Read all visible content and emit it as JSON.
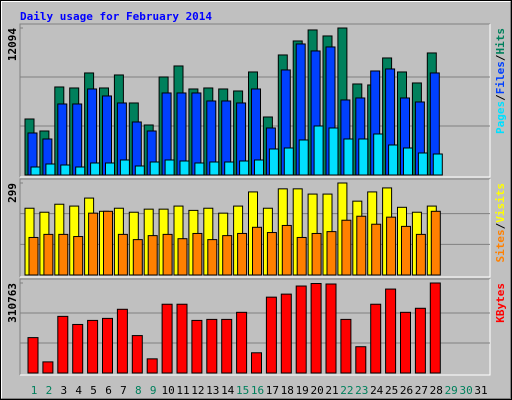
{
  "chart_data": [
    {
      "type": "bar",
      "title": "Daily usage for February 2014",
      "categories": [
        "1",
        "2",
        "3",
        "4",
        "5",
        "6",
        "7",
        "8",
        "9",
        "10",
        "11",
        "12",
        "13",
        "14",
        "15",
        "16",
        "17",
        "18",
        "19",
        "20",
        "21",
        "22",
        "23",
        "24",
        "25",
        "26",
        "27",
        "28",
        "29",
        "30",
        "31"
      ],
      "ylim": [
        0,
        12094
      ],
      "yticks": [
        12094
      ],
      "grid": true,
      "legend_separator": "/",
      "series": [
        {
          "name": "Hits",
          "color": "#00805c",
          "values": [
            4609,
            3621,
            7242,
            7160,
            8395,
            7160,
            8230,
            5926,
            4115,
            8065,
            8971,
            7078,
            7160,
            7078,
            6913,
            8477,
            4773,
            9876,
            11028,
            11934,
            11440,
            12094,
            7489,
            7407,
            9629,
            8477,
            7572,
            10041,
            null,
            null,
            null
          ]
        },
        {
          "name": "Files",
          "color": "#0040ff",
          "values": [
            3457,
            2963,
            5843,
            5843,
            7078,
            6502,
            5926,
            4362,
            3621,
            6749,
            6749,
            6749,
            6090,
            6090,
            5926,
            7078,
            3868,
            8642,
            10781,
            10205,
            10534,
            6173,
            6337,
            8559,
            8724,
            6337,
            6008,
            8395,
            null,
            null,
            null
          ]
        },
        {
          "name": "Pages",
          "color": "#00e0ff",
          "values": [
            658,
            905,
            823,
            658,
            988,
            988,
            1235,
            741,
            1070,
            1235,
            1152,
            988,
            1070,
            1070,
            1152,
            1235,
            2140,
            2222,
            2881,
            4033,
            3868,
            2963,
            2963,
            3374,
            2469,
            2222,
            1811,
            1728,
            null,
            null,
            null
          ]
        }
      ]
    },
    {
      "type": "bar",
      "categories": [
        "1",
        "2",
        "3",
        "4",
        "5",
        "6",
        "7",
        "8",
        "9",
        "10",
        "11",
        "12",
        "13",
        "14",
        "15",
        "16",
        "17",
        "18",
        "19",
        "20",
        "21",
        "22",
        "23",
        "24",
        "25",
        "26",
        "27",
        "28",
        "29",
        "30",
        "31"
      ],
      "ylim": [
        0,
        299
      ],
      "yticks": [
        299
      ],
      "grid": true,
      "legend_separator": "/",
      "series": [
        {
          "name": "Visits",
          "color": "#ffff00",
          "values": [
            217,
            204,
            230,
            224,
            250,
            207,
            217,
            204,
            214,
            214,
            224,
            210,
            217,
            201,
            224,
            270,
            217,
            280,
            280,
            263,
            263,
            299,
            240,
            270,
            283,
            220,
            204,
            224,
            null,
            null,
            null
          ]
        },
        {
          "name": "Sites",
          "color": "#ff8000",
          "values": [
            122,
            132,
            132,
            125,
            201,
            207,
            132,
            115,
            128,
            132,
            118,
            135,
            115,
            128,
            135,
            155,
            138,
            161,
            122,
            135,
            141,
            178,
            191,
            165,
            188,
            158,
            132,
            207,
            null,
            null,
            null
          ]
        }
      ]
    },
    {
      "type": "bar",
      "categories": [
        "1",
        "2",
        "3",
        "4",
        "5",
        "6",
        "7",
        "8",
        "9",
        "10",
        "11",
        "12",
        "13",
        "14",
        "15",
        "16",
        "17",
        "18",
        "19",
        "20",
        "21",
        "22",
        "23",
        "24",
        "25",
        "26",
        "27",
        "28",
        "29",
        "30",
        "31"
      ],
      "category_colors": [
        "#00805c",
        "#00805c",
        "#000000",
        "#000000",
        "#000000",
        "#000000",
        "#000000",
        "#00805c",
        "#00805c",
        "#000000",
        "#000000",
        "#000000",
        "#000000",
        "#000000",
        "#00805c",
        "#00805c",
        "#000000",
        "#000000",
        "#000000",
        "#000000",
        "#000000",
        "#00805c",
        "#00805c",
        "#000000",
        "#000000",
        "#000000",
        "#000000",
        "#000000",
        "#00805c",
        "#00805c",
        "#000000"
      ],
      "ylim": [
        0,
        310763
      ],
      "yticks": [
        310763
      ],
      "grid": true,
      "series": [
        {
          "name": "KBytes",
          "color": "#ff0000",
          "values": [
            122220,
            38412,
            195552,
            167616,
            181584,
            188568,
            219996,
            129204,
            48888,
            237456,
            237456,
            181584,
            185076,
            185076,
            209520,
            69840,
            261900,
            272376,
            300312,
            309000,
            307296,
            185076,
            90792,
            237456,
            289836,
            209520,
            223488,
            310763,
            null,
            null,
            null
          ]
        }
      ]
    }
  ]
}
